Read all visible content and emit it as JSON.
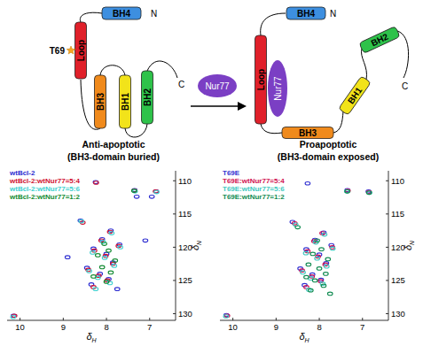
{
  "diagram": {
    "before": {
      "domains": [
        "BH4",
        "Loop",
        "BH3",
        "BH1",
        "BH2"
      ],
      "n_terminus": "N",
      "c_terminus": "C",
      "site": "T69",
      "title": "Anti-apoptotic",
      "subtitle": "(BH3-domain buried)"
    },
    "ligand": "Nur77",
    "after": {
      "domains": [
        "BH4",
        "Loop",
        "BH3",
        "BH1",
        "BH2"
      ],
      "bound": "Nur77",
      "n_terminus": "N",
      "c_terminus": "C",
      "title": "Proapoptotic",
      "subtitle": "(BH3-domain exposed)"
    }
  },
  "chart_data": [
    {
      "type": "scatter",
      "x_label": "δH",
      "y_label": "δN",
      "xlim": [
        10.3,
        6.4
      ],
      "ylim": [
        108.5,
        131
      ],
      "xticks": [
        10,
        9,
        8,
        7
      ],
      "yticks": [
        110,
        115,
        120,
        125,
        130
      ],
      "legend": "upper left",
      "marker": "ellipse",
      "series": [
        {
          "name": "wtBcl-2",
          "color": "#2b2bd0",
          "x": [
            10.15,
            8.25,
            7.35,
            6.85,
            7.3,
            6.95,
            8.6,
            7.9,
            8.1,
            7.7,
            8.3,
            8.0,
            7.85,
            8.45,
            8.15,
            7.95,
            8.35,
            7.75,
            8.9,
            7.1
          ],
          "values": [
            130.3,
            110.2,
            111.4,
            111.6,
            112.4,
            112.4,
            116.0,
            117.5,
            118.8,
            119.6,
            120.2,
            121.0,
            122.3,
            123.1,
            124.0,
            124.8,
            125.6,
            126.3,
            121.5,
            119.0
          ]
        },
        {
          "name": "wtBcl-2:wtNur77=5:4",
          "color": "#d01030",
          "x": [
            10.13,
            8.24,
            7.35,
            6.86,
            8.55,
            7.92,
            8.12,
            7.72,
            8.28,
            8.02,
            7.85,
            8.42,
            8.18,
            7.98,
            8.3
          ],
          "values": [
            130.3,
            110.3,
            111.5,
            111.6,
            116.3,
            117.7,
            119.0,
            119.8,
            120.5,
            121.3,
            122.5,
            123.4,
            124.3,
            125.0,
            126.0
          ]
        },
        {
          "name": "wtBcl-2:wtNur77=5:6",
          "color": "#40d0d0",
          "x": [
            10.16,
            7.34,
            6.84,
            8.58,
            7.88,
            8.08,
            7.68,
            8.32,
            8.04,
            7.82,
            8.4,
            8.2,
            7.92,
            8.25
          ],
          "values": [
            130.5,
            111.6,
            111.7,
            116.1,
            117.9,
            119.2,
            120.0,
            120.8,
            121.6,
            122.8,
            123.6,
            124.6,
            125.4,
            126.3
          ]
        },
        {
          "name": "wtBcl-2:wtNur77=1:2",
          "color": "#108a30",
          "x": [
            7.36,
            8.05,
            7.95,
            8.2,
            7.8,
            8.1,
            7.9,
            8.3,
            8.0
          ],
          "values": [
            111.5,
            119.5,
            120.5,
            121.2,
            122.0,
            123.0,
            123.8,
            124.4,
            125.2
          ]
        }
      ]
    },
    {
      "type": "scatter",
      "x_label": "δH",
      "y_label": "δN",
      "xlim": [
        10.3,
        6.4
      ],
      "ylim": [
        108.5,
        131
      ],
      "xticks": [
        10,
        9,
        8,
        7
      ],
      "yticks": [
        110,
        115,
        120,
        125,
        130
      ],
      "legend": "upper left",
      "marker": "ellipse",
      "series": [
        {
          "name": "T69E",
          "color": "#3030d0",
          "x": [
            10.15,
            8.27,
            7.35,
            6.86,
            8.62,
            7.9,
            8.1,
            7.72,
            8.3,
            8.0,
            7.84,
            8.44,
            8.16,
            7.96,
            8.34
          ],
          "values": [
            130.2,
            110.4,
            111.4,
            111.6,
            116.2,
            117.8,
            118.9,
            119.7,
            120.3,
            121.1,
            122.4,
            123.2,
            124.1,
            124.9,
            125.7
          ]
        },
        {
          "name": "T69E:wtNur77=5:4",
          "color": "#d01050",
          "x": [
            10.13,
            7.34,
            6.85,
            8.57,
            7.93,
            8.12,
            7.7,
            8.27,
            8.03,
            7.86,
            8.4,
            8.17,
            7.97,
            8.3
          ],
          "values": [
            130.3,
            111.5,
            111.7,
            116.4,
            117.9,
            119.1,
            120.0,
            120.6,
            121.4,
            122.6,
            123.5,
            124.4,
            125.1,
            126.0
          ]
        },
        {
          "name": "T69E:wtNur77=5:6",
          "color": "#40c8c0",
          "x": [
            10.16,
            7.36,
            6.84,
            8.55,
            7.88,
            8.08,
            7.69,
            8.31,
            8.05,
            7.83,
            8.38,
            8.2,
            7.92,
            8.24
          ],
          "values": [
            130.4,
            111.6,
            111.8,
            116.6,
            118.1,
            119.3,
            120.2,
            120.9,
            121.7,
            122.9,
            123.8,
            124.7,
            125.5,
            126.4
          ]
        },
        {
          "name": "T69E:wtNur77=1:2",
          "color": "#0f8a50",
          "x": [
            7.35,
            6.85,
            8.5,
            8.05,
            7.95,
            8.15,
            7.8,
            8.25,
            8.0,
            7.85,
            8.3,
            8.1,
            7.9,
            8.2,
            7.75
          ],
          "values": [
            111.6,
            111.8,
            117.0,
            119.0,
            120.3,
            121.0,
            121.8,
            122.6,
            123.2,
            124.0,
            124.5,
            125.0,
            125.8,
            126.5,
            127.0
          ]
        }
      ]
    }
  ]
}
